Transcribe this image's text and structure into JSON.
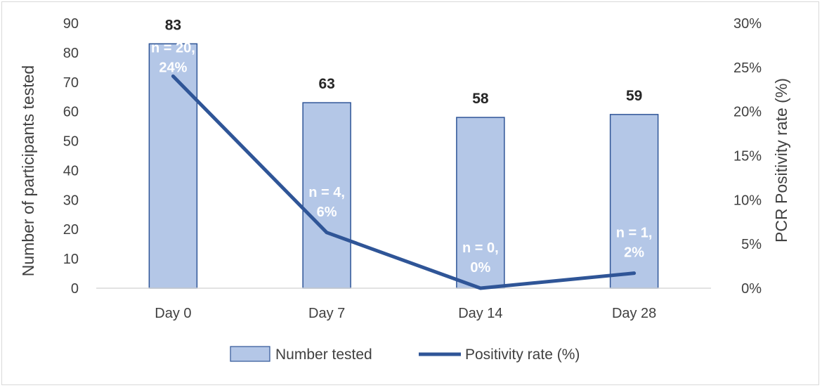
{
  "chart_data": {
    "type": "bar",
    "categories": [
      "Day 0",
      "Day 7",
      "Day 14",
      "Day 28"
    ],
    "series": [
      {
        "name": "Number tested",
        "type": "bar",
        "axis": "left",
        "values": [
          83,
          63,
          58,
          59
        ],
        "color": "#b4c7e7",
        "border": "#2f5597"
      },
      {
        "name": "Positivity rate (%)",
        "type": "line",
        "axis": "right",
        "values": [
          24,
          6.3,
          0,
          1.7
        ],
        "color": "#2f5597"
      }
    ],
    "bar_labels": [
      "83",
      "63",
      "58",
      "59"
    ],
    "rate_labels": [
      [
        "n = 20,",
        "24%"
      ],
      [
        "n = 4,",
        "6%"
      ],
      [
        "n = 0,",
        "0%"
      ],
      [
        "n = 1,",
        "2%"
      ]
    ],
    "ylabel": "Number of participants tested",
    "y2label": "PCR Positivity rate (%)",
    "ylim": [
      0,
      90
    ],
    "yticks": [
      "0",
      "10",
      "20",
      "30",
      "40",
      "50",
      "60",
      "70",
      "80",
      "90"
    ],
    "y2lim": [
      0,
      30
    ],
    "y2ticks": [
      "0%",
      "5%",
      "10%",
      "15%",
      "20%",
      "25%",
      "30%"
    ],
    "grid": false,
    "legend_position": "bottom"
  }
}
